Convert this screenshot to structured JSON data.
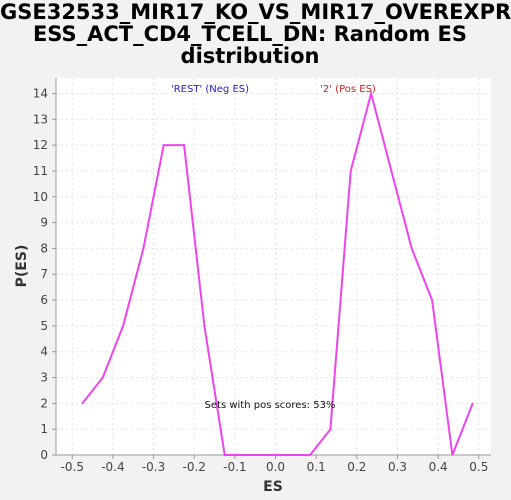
{
  "chart_data": {
    "type": "line",
    "title_lines": [
      "GSE32533_MIR17_KO_VS_MIR17_OVEREXPR",
      "ESS_ACT_CD4_TCELL_DN: Random ES",
      "distribution"
    ],
    "xlabel": "ES",
    "ylabel": "P(ES)",
    "xlim": [
      -0.54,
      0.53
    ],
    "ylim": [
      0,
      14.6
    ],
    "xticks": [
      -0.5,
      -0.4,
      -0.3,
      -0.2,
      -0.1,
      0.0,
      0.1,
      0.2,
      0.3,
      0.4,
      0.5
    ],
    "xtick_labels": [
      "-0.5",
      "-0.4",
      "-0.3",
      "-0.2",
      "-0.1",
      "0.0",
      "0.1",
      "0.2",
      "0.3",
      "0.4",
      "0.5"
    ],
    "yticks": [
      0,
      1,
      2,
      3,
      4,
      5,
      6,
      7,
      8,
      9,
      10,
      11,
      12,
      13,
      14
    ],
    "ytick_labels": [
      "0",
      "1",
      "2",
      "3",
      "4",
      "5",
      "6",
      "7",
      "8",
      "9",
      "10",
      "11",
      "12",
      "13",
      "14"
    ],
    "grid": true,
    "series": [
      {
        "color": "#ee44ee",
        "x": [
          -0.475,
          -0.425,
          -0.375,
          -0.325,
          -0.275,
          -0.225,
          -0.175,
          -0.125,
          -0.075,
          -0.025,
          0.025,
          0.085,
          0.135,
          0.185,
          0.235,
          0.285,
          0.335,
          0.385,
          0.435,
          0.485
        ],
        "y": [
          2,
          3,
          5,
          8,
          12,
          12,
          5,
          0,
          0,
          0,
          0,
          0,
          1,
          11,
          14,
          11,
          8,
          6,
          0,
          2
        ]
      }
    ],
    "annotations": {
      "neg_label": "'REST' (Neg ES)",
      "neg_color": "#2222cc",
      "pos_label": "'2' (Pos ES)",
      "pos_color": "#cc2222",
      "pos_scores_text": "Sets with pos scores: 53%"
    }
  }
}
